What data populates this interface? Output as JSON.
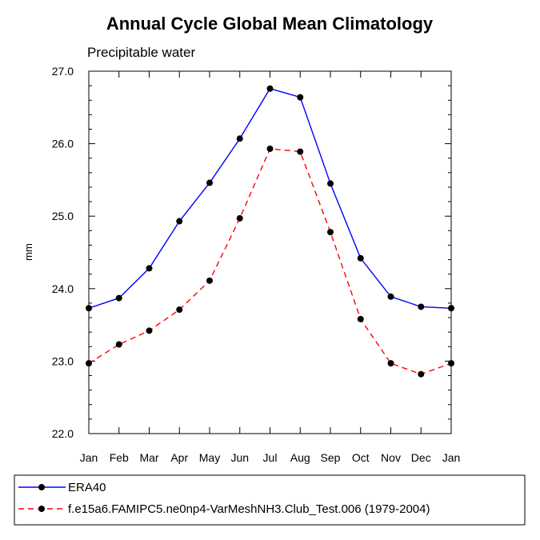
{
  "chart_data": {
    "type": "line",
    "title": "Annual Cycle Global Mean Climatology",
    "subtitle": "Precipitable water",
    "xlabel": "",
    "ylabel": "mm",
    "categories": [
      "Jan",
      "Feb",
      "Mar",
      "Apr",
      "May",
      "Jun",
      "Jul",
      "Aug",
      "Sep",
      "Oct",
      "Nov",
      "Dec",
      "Jan"
    ],
    "ylim": [
      22.0,
      27.0
    ],
    "yticks": [
      "22.0",
      "23.0",
      "24.0",
      "25.0",
      "26.0",
      "27.0"
    ],
    "grid": false,
    "legend_position": "bottom",
    "series": [
      {
        "name": "ERA40",
        "color": "#0000ff",
        "dash": "solid",
        "values": [
          23.73,
          23.87,
          24.28,
          24.93,
          25.46,
          26.07,
          26.76,
          26.64,
          25.45,
          24.42,
          23.89,
          23.75,
          23.73
        ]
      },
      {
        "name": "f.e15a6.FAMIPC5.ne0np4-VarMeshNH3.Club_Test.006 (1979-2004)",
        "color": "#ff0000",
        "dash": "dashed",
        "values": [
          22.97,
          23.23,
          23.42,
          23.71,
          24.11,
          24.97,
          25.93,
          25.89,
          24.78,
          23.58,
          22.97,
          22.82,
          22.97
        ]
      }
    ]
  }
}
